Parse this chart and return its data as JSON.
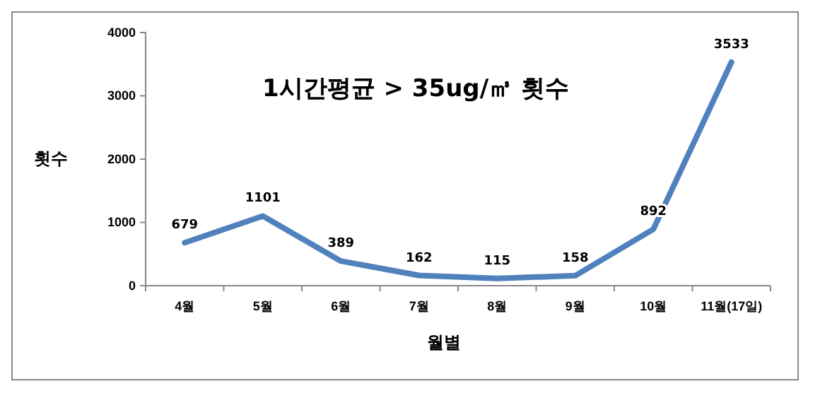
{
  "chart_data": {
    "type": "line",
    "title": "1시간평균 > 35ug/㎥ 횟수",
    "xlabel": "월별",
    "ylabel": "횟수",
    "categories": [
      "4월",
      "5월",
      "6월",
      "7월",
      "8월",
      "9월",
      "10월",
      "11월(17일)"
    ],
    "series": [
      {
        "color": "#4f81bd",
        "values": [
          679,
          1101,
          389,
          162,
          115,
          158,
          892,
          3533
        ]
      }
    ],
    "ylim": [
      0,
      4000
    ],
    "yticks": [
      0,
      1000,
      2000,
      3000,
      4000
    ],
    "grid": false,
    "marker": "none",
    "line_style": "solid",
    "data_labels": true
  }
}
